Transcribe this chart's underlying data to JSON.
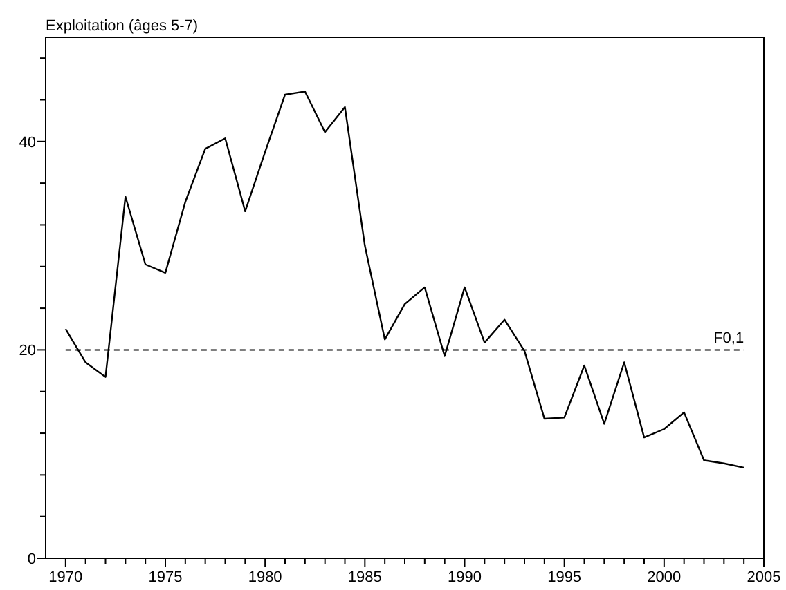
{
  "chart_data": {
    "type": "line",
    "ylabel": "Exploitation (âges 5-7)",
    "x": [
      1970,
      1971,
      1972,
      1973,
      1974,
      1975,
      1976,
      1977,
      1978,
      1979,
      1980,
      1981,
      1982,
      1983,
      1984,
      1985,
      1986,
      1987,
      1988,
      1989,
      1990,
      1991,
      1992,
      1993,
      1994,
      1995,
      1996,
      1997,
      1998,
      1999,
      2000,
      2001,
      2002,
      2003,
      2004
    ],
    "series": [
      {
        "color": "#000000",
        "values": [
          22.0,
          18.8,
          17.4,
          34.7,
          28.2,
          27.4,
          34.2,
          39.3,
          40.3,
          33.3,
          39,
          44.5,
          44.8,
          40.9,
          43.3,
          30.0,
          21.0,
          24.4,
          26.0,
          19.4,
          26.0,
          20.7,
          22.9,
          19.9,
          13.4,
          13.5,
          18.5,
          12.9,
          18.8,
          11.6,
          12.4,
          14.0,
          9.4,
          9.1,
          8.7
        ]
      }
    ],
    "xlim": [
      1969,
      2005
    ],
    "ylim": [
      0,
      50
    ],
    "xticks": [
      1970,
      {
        "value": 1971,
        "label": null
      },
      {
        "value": 1972,
        "label": null
      },
      {
        "value": 1973,
        "label": null
      },
      {
        "value": 1974,
        "label": null
      },
      1975,
      {
        "value": 1976,
        "label": null
      },
      {
        "value": 1977,
        "label": null
      },
      {
        "value": 1978,
        "label": null
      },
      {
        "value": 1979,
        "label": null
      },
      1980,
      {
        "value": 1981,
        "label": null
      },
      {
        "value": 1982,
        "label": null
      },
      {
        "value": 1983,
        "label": null
      },
      {
        "value": 1984,
        "label": null
      },
      1985,
      {
        "value": 1986,
        "label": null
      },
      {
        "value": 1987,
        "label": null
      },
      {
        "value": 1988,
        "label": null
      },
      {
        "value": 1989,
        "label": null
      },
      1990,
      {
        "value": 1991,
        "label": null
      },
      {
        "value": 1992,
        "label": null
      },
      {
        "value": 1993,
        "label": null
      },
      {
        "value": 1994,
        "label": null
      },
      1995,
      {
        "value": 1996,
        "label": null
      },
      {
        "value": 1997,
        "label": null
      },
      {
        "value": 1998,
        "label": null
      },
      {
        "value": 1999,
        "label": null
      },
      2000,
      {
        "value": 2001,
        "label": null
      },
      {
        "value": 2002,
        "label": null
      },
      {
        "value": 2003,
        "label": null
      },
      {
        "value": 2004,
        "label": null
      },
      2005
    ],
    "yticks": [
      0,
      {
        "value": 4,
        "label": null
      },
      {
        "value": 8,
        "label": null
      },
      {
        "value": 12,
        "label": null
      },
      {
        "value": 16,
        "label": null
      },
      20,
      {
        "value": 24,
        "label": null
      },
      {
        "value": 28,
        "label": null
      },
      {
        "value": 32,
        "label": null
      },
      {
        "value": 36,
        "label": null
      },
      40,
      {
        "value": 44,
        "label": null
      },
      {
        "value": 48,
        "label": null
      }
    ],
    "ref_lines": [
      {
        "axis": "y",
        "value": 20,
        "label": "F0,1",
        "color": "#000000",
        "line_style": "dashed"
      }
    ],
    "grid": false
  }
}
